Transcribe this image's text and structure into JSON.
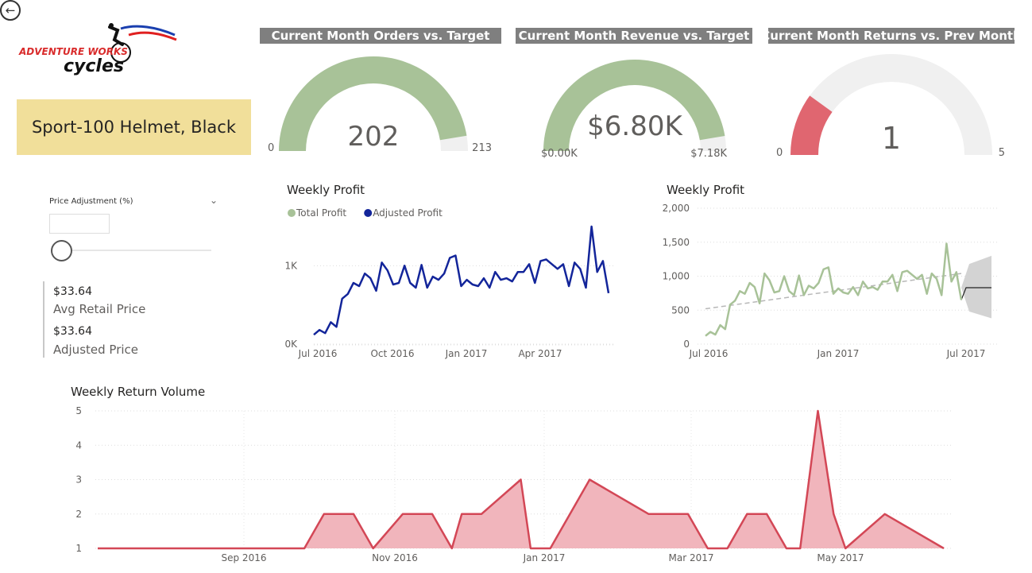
{
  "nav": {
    "back_icon": "back-arrow-icon",
    "back_glyph": "←"
  },
  "logo": {
    "line1": "ADVENTURE WORKS",
    "line2": "cycles"
  },
  "product": {
    "name": "Sport-100 Helmet, Black"
  },
  "gauges": [
    {
      "title": "Current Month Orders vs. Target",
      "value": 202,
      "value_label": "202",
      "min": 0,
      "max": 213,
      "min_label": "0",
      "max_label": "213",
      "color": "#a8c298",
      "track": "#f0f0f0"
    },
    {
      "title": "Current Month Revenue vs. Target",
      "value": 6.8,
      "value_label": "$6.80K",
      "min": 0,
      "max": 7.18,
      "min_label": "$0.00K",
      "max_label": "$7.18K",
      "color": "#a8c298",
      "track": "#f0f0f0"
    },
    {
      "title": "Current Month Returns vs. Prev Month",
      "value": 1,
      "value_label": "1",
      "min": 0,
      "max": 5,
      "min_label": "0",
      "max_label": "5",
      "color": "#e06670",
      "track": "#f0f0f0"
    }
  ],
  "slicer": {
    "title": "Price Adjustment (%)",
    "chevron": "⌄",
    "value_pct": 0
  },
  "prices": [
    {
      "value": "$33.64",
      "label": "Avg Retail Price"
    },
    {
      "value": "$33.64",
      "label": "Adjusted Price"
    }
  ],
  "chart_data": [
    {
      "type": "line",
      "title": "Weekly Profit",
      "legend": [
        {
          "name": "Total Profit",
          "color": "#a8c298"
        },
        {
          "name": "Adjusted Profit",
          "color": "#13259a"
        }
      ],
      "x_ticks": [
        "Jul 2016",
        "Oct 2016",
        "Jan 2017",
        "Apr 2017"
      ],
      "y_ticks": [
        "0K",
        "1K"
      ],
      "ylim": [
        0,
        1500
      ],
      "series": [
        {
          "name": "Adjusted Profit",
          "color": "#13259a",
          "values": [
            120,
            180,
            140,
            280,
            220,
            580,
            640,
            780,
            740,
            900,
            840,
            680,
            1040,
            940,
            760,
            780,
            1000,
            780,
            720,
            1010,
            720,
            860,
            820,
            900,
            1100,
            1130,
            740,
            820,
            760,
            740,
            840,
            720,
            920,
            820,
            840,
            800,
            920,
            920,
            1020,
            780,
            1060,
            1080,
            1020,
            960,
            1020,
            740,
            1040,
            960,
            720,
            1500,
            920,
            1060,
            650
          ]
        }
      ]
    },
    {
      "type": "line",
      "title": "Weekly Profit",
      "y_ticks": [
        "0",
        "500",
        "1,000",
        "1,500",
        "2,000"
      ],
      "x_ticks": [
        "Jul 2016",
        "Jan 2017",
        "Jul 2017"
      ],
      "ylim": [
        0,
        2000
      ],
      "series": [
        {
          "name": "Total Profit",
          "color": "#a8c298",
          "values": [
            120,
            180,
            140,
            280,
            220,
            580,
            640,
            780,
            740,
            900,
            840,
            600,
            1040,
            940,
            760,
            780,
            1000,
            780,
            720,
            1010,
            720,
            860,
            820,
            900,
            1100,
            1130,
            740,
            820,
            760,
            740,
            840,
            720,
            920,
            820,
            840,
            800,
            920,
            920,
            1020,
            780,
            1060,
            1080,
            1020,
            960,
            1020,
            740,
            1040,
            960,
            720,
            1480,
            920,
            1060,
            650
          ]
        }
      ],
      "trend": {
        "start": 520,
        "end": 1040,
        "color": "#b8b8b8"
      },
      "forecast": {
        "value": 830,
        "upper": [
          1180,
          1300
        ],
        "lower": [
          480,
          380
        ],
        "color": "#222"
      }
    },
    {
      "type": "area",
      "title": "Weekly Return Volume",
      "y_ticks": [
        "1",
        "2",
        "3",
        "4",
        "5"
      ],
      "x_ticks": [
        "Sep 2016",
        "Nov 2016",
        "Jan 2017",
        "Mar 2017",
        "May 2017"
      ],
      "ylim": [
        1,
        5
      ],
      "color": "#d34756",
      "fill": "#f1b5bc",
      "points": [
        [
          0,
          1
        ],
        [
          10.5,
          1
        ],
        [
          11.5,
          2
        ],
        [
          13,
          2
        ],
        [
          14,
          1
        ],
        [
          15.5,
          2
        ],
        [
          17,
          2
        ],
        [
          18,
          1
        ],
        [
          18.5,
          2
        ],
        [
          19.5,
          2
        ],
        [
          21.5,
          3
        ],
        [
          22,
          1
        ],
        [
          23,
          1
        ],
        [
          25,
          3
        ],
        [
          28,
          2
        ],
        [
          30,
          2
        ],
        [
          31,
          1
        ],
        [
          32,
          1
        ],
        [
          33,
          2
        ],
        [
          34,
          2
        ],
        [
          35,
          1
        ],
        [
          35.7,
          1
        ],
        [
          36.6,
          5
        ],
        [
          37.4,
          2
        ],
        [
          38,
          1
        ],
        [
          40,
          2
        ],
        [
          43,
          1
        ]
      ]
    }
  ]
}
